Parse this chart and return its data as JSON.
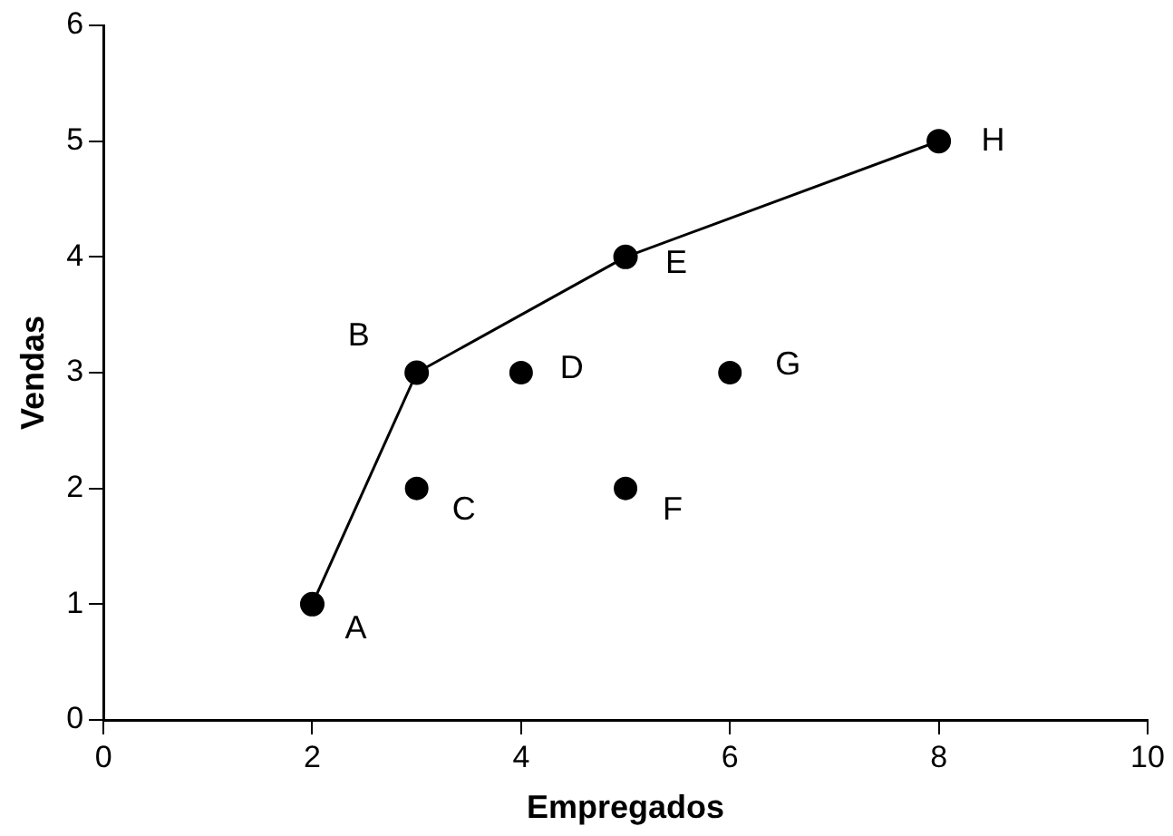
{
  "chart_data": {
    "type": "scatter",
    "xlabel": "Empregados",
    "ylabel": "Vendas",
    "series": [
      {
        "color": "#000000",
        "x": [
          3,
          4,
          5,
          6
        ],
        "values": [
          2,
          3,
          2,
          3
        ]
      },
      {
        "type": "line",
        "color": "#000000",
        "x": [
          2,
          3,
          5,
          8
        ],
        "values": [
          1,
          3,
          4,
          5
        ]
      }
    ],
    "annotations": [
      {
        "text": "A",
        "x": 2,
        "y": 1
      },
      {
        "text": "B",
        "x": 3,
        "y": 3
      },
      {
        "text": "C",
        "x": 3,
        "y": 2
      },
      {
        "text": "D",
        "x": 4,
        "y": 3
      },
      {
        "text": "E",
        "x": 5,
        "y": 4
      },
      {
        "text": "F",
        "x": 5,
        "y": 2
      },
      {
        "text": "G",
        "x": 6,
        "y": 3
      },
      {
        "text": "H",
        "x": 8,
        "y": 5
      }
    ],
    "xlim": [
      0,
      10
    ],
    "xticks": [
      0,
      2,
      4,
      6,
      8,
      10
    ],
    "ylim": [
      0,
      6
    ],
    "yticks": [
      0,
      1,
      2,
      3,
      4,
      5,
      6
    ],
    "grid": false,
    "legend": false,
    "marker": "circle",
    "line_style": "solid"
  }
}
